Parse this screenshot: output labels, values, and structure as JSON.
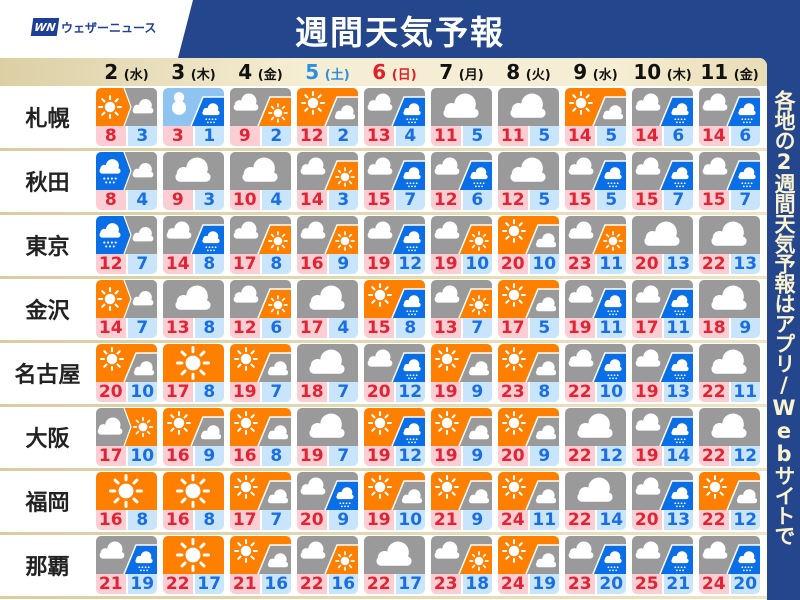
{
  "header": {
    "title": "週間天気予報",
    "logo_mark": "WN",
    "logo_text": "ウェザーニュース"
  },
  "side_note": "各地の2週間天気予報はアプリ/Webサイトで",
  "colors": {
    "sun": "#ff7f00",
    "cloud": "#9a9a9a",
    "rain": "#0a6fe6",
    "snow": "#8fc3f0",
    "saturday": "#2e8fe0",
    "sunday": "#e0202c",
    "weekday": "#111111",
    "header_bg": "#23468c"
  },
  "dates": [
    {
      "num": "2",
      "dow": "(水)",
      "kind": "weekday"
    },
    {
      "num": "3",
      "dow": "(木)",
      "kind": "weekday"
    },
    {
      "num": "4",
      "dow": "(金)",
      "kind": "weekday"
    },
    {
      "num": "5",
      "dow": "(土)",
      "kind": "saturday"
    },
    {
      "num": "6",
      "dow": "(日)",
      "kind": "sunday"
    },
    {
      "num": "7",
      "dow": "(月)",
      "kind": "weekday"
    },
    {
      "num": "8",
      "dow": "(火)",
      "kind": "weekday"
    },
    {
      "num": "9",
      "dow": "(水)",
      "kind": "weekday"
    },
    {
      "num": "10",
      "dow": "(木)",
      "kind": "weekday"
    },
    {
      "num": "11",
      "dow": "(金)",
      "kind": "weekday"
    }
  ],
  "rows": [
    {
      "city": "札幌",
      "days": [
        {
          "w": [
            "sun",
            "cloud"
          ],
          "sep": "arrow",
          "hi": "8",
          "lo": "3"
        },
        {
          "w": [
            "snow",
            "rain"
          ],
          "sep": "slash",
          "hi": "3",
          "lo": "1"
        },
        {
          "w": [
            "cloud",
            "sun"
          ],
          "sep": "slash",
          "hi": "9",
          "lo": "2"
        },
        {
          "w": [
            "sun",
            "cloud"
          ],
          "sep": "slash",
          "hi": "12",
          "lo": "2"
        },
        {
          "w": [
            "cloud",
            "rain"
          ],
          "sep": "slash",
          "hi": "13",
          "lo": "4"
        },
        {
          "w": [
            "cloud"
          ],
          "hi": "11",
          "lo": "5"
        },
        {
          "w": [
            "cloud"
          ],
          "hi": "11",
          "lo": "5"
        },
        {
          "w": [
            "sun",
            "cloud"
          ],
          "sep": "slash",
          "hi": "14",
          "lo": "5"
        },
        {
          "w": [
            "cloud",
            "rain"
          ],
          "sep": "slash",
          "hi": "14",
          "lo": "6"
        },
        {
          "w": [
            "cloud",
            "rain"
          ],
          "sep": "slash",
          "hi": "14",
          "lo": "6"
        }
      ]
    },
    {
      "city": "秋田",
      "days": [
        {
          "w": [
            "rain",
            "cloud"
          ],
          "sep": "arrow",
          "hi": "8",
          "lo": "4"
        },
        {
          "w": [
            "cloud"
          ],
          "hi": "9",
          "lo": "3"
        },
        {
          "w": [
            "cloud"
          ],
          "hi": "10",
          "lo": "4"
        },
        {
          "w": [
            "cloud",
            "sun"
          ],
          "sep": "slash",
          "hi": "14",
          "lo": "3"
        },
        {
          "w": [
            "cloud",
            "rain"
          ],
          "sep": "slash",
          "hi": "15",
          "lo": "7"
        },
        {
          "w": [
            "cloud",
            "rain"
          ],
          "sep": "slash",
          "hi": "12",
          "lo": "6"
        },
        {
          "w": [
            "cloud"
          ],
          "hi": "12",
          "lo": "5"
        },
        {
          "w": [
            "cloud",
            "rain"
          ],
          "sep": "slash",
          "hi": "15",
          "lo": "5"
        },
        {
          "w": [
            "cloud",
            "rain"
          ],
          "sep": "slash",
          "hi": "15",
          "lo": "7"
        },
        {
          "w": [
            "cloud",
            "rain"
          ],
          "sep": "slash",
          "hi": "15",
          "lo": "7"
        }
      ]
    },
    {
      "city": "東京",
      "days": [
        {
          "w": [
            "rain",
            "cloud"
          ],
          "sep": "arrow",
          "hi": "12",
          "lo": "7"
        },
        {
          "w": [
            "cloud",
            "rain"
          ],
          "sep": "slash",
          "hi": "14",
          "lo": "8"
        },
        {
          "w": [
            "cloud",
            "sun"
          ],
          "sep": "slash",
          "hi": "17",
          "lo": "8"
        },
        {
          "w": [
            "cloud",
            "sun"
          ],
          "sep": "slash",
          "hi": "16",
          "lo": "9"
        },
        {
          "w": [
            "cloud",
            "rain"
          ],
          "sep": "slash",
          "hi": "19",
          "lo": "12"
        },
        {
          "w": [
            "cloud",
            "sun"
          ],
          "sep": "slash",
          "hi": "19",
          "lo": "10"
        },
        {
          "w": [
            "sun",
            "cloud"
          ],
          "sep": "slash",
          "hi": "20",
          "lo": "10"
        },
        {
          "w": [
            "cloud",
            "sun"
          ],
          "sep": "slash",
          "hi": "23",
          "lo": "11"
        },
        {
          "w": [
            "cloud"
          ],
          "hi": "20",
          "lo": "13"
        },
        {
          "w": [
            "cloud"
          ],
          "hi": "22",
          "lo": "13"
        }
      ]
    },
    {
      "city": "金沢",
      "days": [
        {
          "w": [
            "sun",
            "cloud"
          ],
          "sep": "arrow",
          "hi": "14",
          "lo": "7"
        },
        {
          "w": [
            "cloud"
          ],
          "hi": "13",
          "lo": "8"
        },
        {
          "w": [
            "cloud",
            "sun"
          ],
          "sep": "slash",
          "hi": "12",
          "lo": "6"
        },
        {
          "w": [
            "cloud"
          ],
          "hi": "17",
          "lo": "4"
        },
        {
          "w": [
            "sun",
            "rain"
          ],
          "sep": "slash",
          "hi": "15",
          "lo": "8"
        },
        {
          "w": [
            "cloud",
            "sun"
          ],
          "sep": "slash",
          "hi": "13",
          "lo": "7"
        },
        {
          "w": [
            "sun",
            "cloud"
          ],
          "sep": "slash",
          "hi": "17",
          "lo": "5"
        },
        {
          "w": [
            "cloud",
            "rain"
          ],
          "sep": "slash",
          "hi": "19",
          "lo": "11"
        },
        {
          "w": [
            "cloud",
            "rain"
          ],
          "sep": "slash",
          "hi": "17",
          "lo": "11"
        },
        {
          "w": [
            "cloud"
          ],
          "hi": "18",
          "lo": "9"
        }
      ]
    },
    {
      "city": "名古屋",
      "days": [
        {
          "w": [
            "sun",
            "cloud"
          ],
          "sep": "slash",
          "hi": "20",
          "lo": "10"
        },
        {
          "w": [
            "sun"
          ],
          "hi": "17",
          "lo": "8"
        },
        {
          "w": [
            "sun",
            "cloud"
          ],
          "sep": "slash",
          "hi": "19",
          "lo": "7"
        },
        {
          "w": [
            "cloud"
          ],
          "hi": "18",
          "lo": "7"
        },
        {
          "w": [
            "cloud",
            "rain"
          ],
          "sep": "slash",
          "hi": "20",
          "lo": "12"
        },
        {
          "w": [
            "sun",
            "cloud"
          ],
          "sep": "slash",
          "hi": "19",
          "lo": "9"
        },
        {
          "w": [
            "sun",
            "cloud"
          ],
          "sep": "slash",
          "hi": "23",
          "lo": "8"
        },
        {
          "w": [
            "cloud",
            "rain"
          ],
          "sep": "slash",
          "hi": "22",
          "lo": "10"
        },
        {
          "w": [
            "cloud",
            "rain"
          ],
          "sep": "slash",
          "hi": "19",
          "lo": "13"
        },
        {
          "w": [
            "cloud"
          ],
          "hi": "22",
          "lo": "11"
        }
      ]
    },
    {
      "city": "大阪",
      "days": [
        {
          "w": [
            "cloud",
            "sun"
          ],
          "sep": "arrow",
          "hi": "17",
          "lo": "10"
        },
        {
          "w": [
            "sun",
            "cloud"
          ],
          "sep": "slash",
          "hi": "16",
          "lo": "9"
        },
        {
          "w": [
            "sun",
            "cloud"
          ],
          "sep": "slash",
          "hi": "16",
          "lo": "8"
        },
        {
          "w": [
            "cloud"
          ],
          "hi": "19",
          "lo": "7"
        },
        {
          "w": [
            "sun",
            "rain"
          ],
          "sep": "slash",
          "hi": "19",
          "lo": "12"
        },
        {
          "w": [
            "sun",
            "cloud"
          ],
          "sep": "slash",
          "hi": "19",
          "lo": "9"
        },
        {
          "w": [
            "sun",
            "cloud"
          ],
          "sep": "slash",
          "hi": "20",
          "lo": "9"
        },
        {
          "w": [
            "cloud"
          ],
          "hi": "22",
          "lo": "12"
        },
        {
          "w": [
            "cloud",
            "rain"
          ],
          "sep": "slash",
          "hi": "19",
          "lo": "14"
        },
        {
          "w": [
            "cloud"
          ],
          "hi": "22",
          "lo": "12"
        }
      ]
    },
    {
      "city": "福岡",
      "days": [
        {
          "w": [
            "sun"
          ],
          "hi": "16",
          "lo": "8"
        },
        {
          "w": [
            "sun"
          ],
          "hi": "16",
          "lo": "8"
        },
        {
          "w": [
            "sun",
            "cloud"
          ],
          "sep": "slash",
          "hi": "17",
          "lo": "7"
        },
        {
          "w": [
            "cloud",
            "rain"
          ],
          "sep": "slash",
          "hi": "20",
          "lo": "9"
        },
        {
          "w": [
            "sun",
            "cloud"
          ],
          "sep": "slash",
          "hi": "19",
          "lo": "10"
        },
        {
          "w": [
            "sun",
            "cloud"
          ],
          "sep": "slash",
          "hi": "21",
          "lo": "9"
        },
        {
          "w": [
            "sun",
            "cloud"
          ],
          "sep": "slash",
          "hi": "24",
          "lo": "11"
        },
        {
          "w": [
            "cloud"
          ],
          "hi": "22",
          "lo": "14"
        },
        {
          "w": [
            "cloud",
            "rain"
          ],
          "sep": "slash",
          "hi": "20",
          "lo": "13"
        },
        {
          "w": [
            "sun",
            "cloud"
          ],
          "sep": "slash",
          "hi": "22",
          "lo": "12"
        }
      ]
    },
    {
      "city": "那覇",
      "days": [
        {
          "w": [
            "cloud",
            "rain"
          ],
          "sep": "slash",
          "hi": "21",
          "lo": "19"
        },
        {
          "w": [
            "sun"
          ],
          "hi": "22",
          "lo": "17"
        },
        {
          "w": [
            "sun",
            "cloud"
          ],
          "sep": "slash",
          "hi": "21",
          "lo": "16"
        },
        {
          "w": [
            "cloud",
            "sun"
          ],
          "sep": "slash",
          "hi": "22",
          "lo": "16"
        },
        {
          "w": [
            "cloud"
          ],
          "hi": "22",
          "lo": "17"
        },
        {
          "w": [
            "cloud",
            "sun"
          ],
          "sep": "slash",
          "hi": "23",
          "lo": "18"
        },
        {
          "w": [
            "sun",
            "cloud"
          ],
          "sep": "slash",
          "hi": "24",
          "lo": "19"
        },
        {
          "w": [
            "cloud",
            "rain"
          ],
          "sep": "slash",
          "hi": "23",
          "lo": "20"
        },
        {
          "w": [
            "cloud",
            "rain"
          ],
          "sep": "slash",
          "hi": "25",
          "lo": "21"
        },
        {
          "w": [
            "cloud",
            "rain"
          ],
          "sep": "slash",
          "hi": "24",
          "lo": "20"
        }
      ]
    }
  ]
}
